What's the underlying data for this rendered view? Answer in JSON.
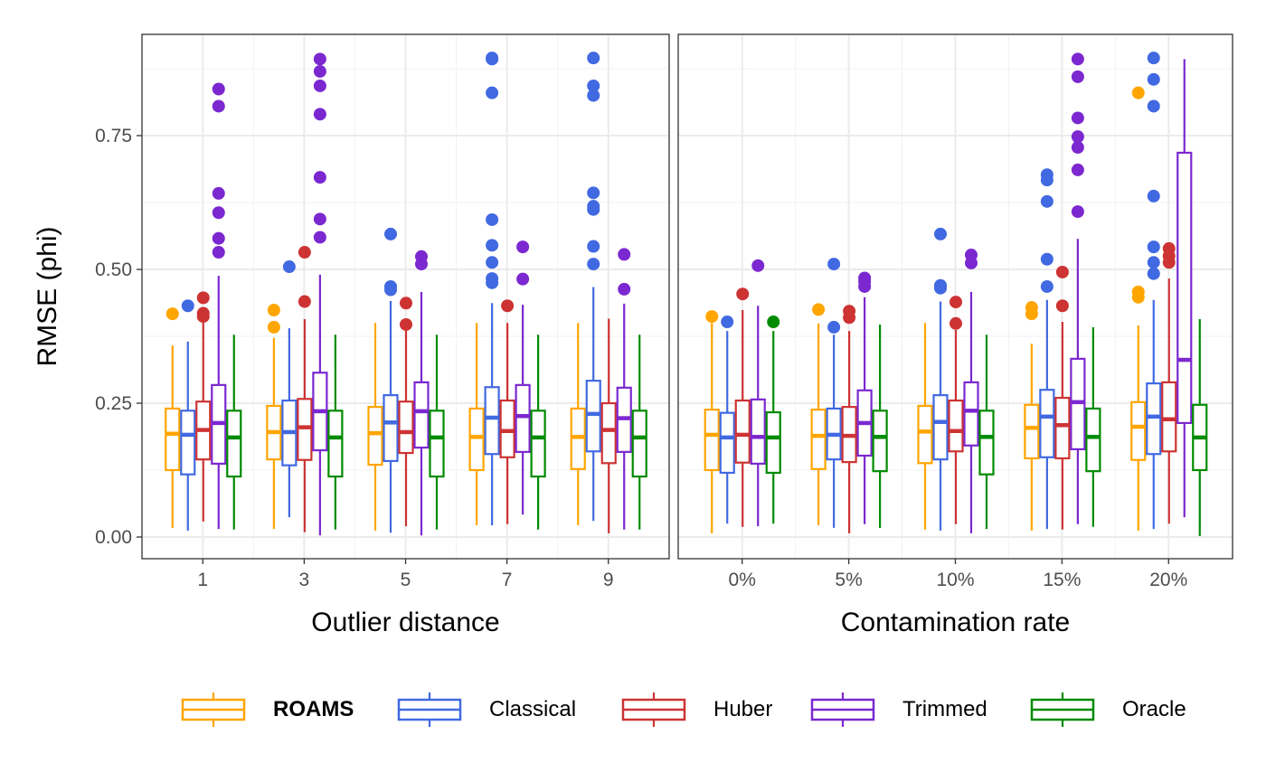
{
  "colors": {
    "ROAMS": "#FFA500",
    "Classical": "#4169E1",
    "Huber": "#CD3333",
    "Trimmed": "#7B28D0",
    "Oracle": "#008B00"
  },
  "legend": {
    "items": [
      {
        "label": "ROAMS",
        "bold": true
      },
      {
        "label": "Classical",
        "bold": false
      },
      {
        "label": "Huber",
        "bold": false
      },
      {
        "label": "Trimmed",
        "bold": false
      },
      {
        "label": "Oracle",
        "bold": false
      }
    ],
    "position": "bottom"
  },
  "chart_data": [
    {
      "type": "box",
      "xlabel": "Outlier distance",
      "ylabel": "RMSE (phi)",
      "ylim": [
        -0.04,
        0.94
      ],
      "yticks": [
        "0.00",
        "0.25",
        "0.50",
        "0.75"
      ],
      "grid": true,
      "categories": [
        "1",
        "3",
        "5",
        "7",
        "9"
      ],
      "series": [
        {
          "name": "ROAMS",
          "boxes": [
            {
              "min": 0.017,
              "q1": 0.125,
              "median": 0.193,
              "q3": 0.24,
              "max": 0.358,
              "outliers": [
                0.417
              ]
            },
            {
              "min": 0.015,
              "q1": 0.145,
              "median": 0.196,
              "q3": 0.245,
              "max": 0.372,
              "outliers": [
                0.424,
                0.392
              ]
            },
            {
              "min": 0.012,
              "q1": 0.135,
              "median": 0.194,
              "q3": 0.243,
              "max": 0.4,
              "outliers": []
            },
            {
              "min": 0.022,
              "q1": 0.125,
              "median": 0.187,
              "q3": 0.24,
              "max": 0.4,
              "outliers": []
            },
            {
              "min": 0.022,
              "q1": 0.127,
              "median": 0.187,
              "q3": 0.24,
              "max": 0.4,
              "outliers": []
            }
          ]
        },
        {
          "name": "Classical",
          "boxes": [
            {
              "min": 0.012,
              "q1": 0.117,
              "median": 0.191,
              "q3": 0.236,
              "max": 0.365,
              "outliers": [
                0.432
              ]
            },
            {
              "min": 0.037,
              "q1": 0.134,
              "median": 0.196,
              "q3": 0.255,
              "max": 0.39,
              "outliers": [
                0.505
              ]
            },
            {
              "min": 0.008,
              "q1": 0.142,
              "median": 0.214,
              "q3": 0.265,
              "max": 0.441,
              "outliers": [
                0.566,
                0.468,
                0.462
              ]
            },
            {
              "min": 0.022,
              "q1": 0.155,
              "median": 0.223,
              "q3": 0.28,
              "max": 0.437,
              "outliers": [
                0.895,
                0.893,
                0.83,
                0.593,
                0.545,
                0.513,
                0.483,
                0.475
              ]
            },
            {
              "min": 0.03,
              "q1": 0.16,
              "median": 0.23,
              "q3": 0.292,
              "max": 0.467,
              "outliers": [
                0.895,
                0.843,
                0.825,
                0.643,
                0.618,
                0.612,
                0.543,
                0.51
              ]
            }
          ]
        },
        {
          "name": "Huber",
          "boxes": [
            {
              "min": 0.029,
              "q1": 0.145,
              "median": 0.2,
              "q3": 0.253,
              "max": 0.41,
              "outliers": [
                0.447,
                0.418,
                0.412
              ]
            },
            {
              "min": 0.009,
              "q1": 0.144,
              "median": 0.205,
              "q3": 0.258,
              "max": 0.407,
              "outliers": [
                0.532,
                0.44
              ]
            },
            {
              "min": 0.02,
              "q1": 0.157,
              "median": 0.196,
              "q3": 0.253,
              "max": 0.4,
              "outliers": [
                0.437,
                0.397
              ]
            },
            {
              "min": 0.024,
              "q1": 0.149,
              "median": 0.198,
              "q3": 0.255,
              "max": 0.4,
              "outliers": [
                0.432
              ]
            },
            {
              "min": 0.007,
              "q1": 0.138,
              "median": 0.2,
              "q3": 0.25,
              "max": 0.408,
              "outliers": []
            }
          ]
        },
        {
          "name": "Trimmed",
          "boxes": [
            {
              "min": 0.015,
              "q1": 0.137,
              "median": 0.213,
              "q3": 0.284,
              "max": 0.488,
              "outliers": [
                0.837,
                0.805,
                0.642,
                0.606,
                0.558,
                0.532
              ]
            },
            {
              "min": 0.003,
              "q1": 0.162,
              "median": 0.235,
              "q3": 0.307,
              "max": 0.49,
              "outliers": [
                0.893,
                0.87,
                0.843,
                0.79,
                0.672,
                0.594,
                0.56
              ]
            },
            {
              "min": 0.003,
              "q1": 0.167,
              "median": 0.235,
              "q3": 0.289,
              "max": 0.458,
              "outliers": [
                0.524,
                0.51
              ]
            },
            {
              "min": 0.042,
              "q1": 0.159,
              "median": 0.226,
              "q3": 0.284,
              "max": 0.434,
              "outliers": [
                0.542,
                0.482
              ]
            },
            {
              "min": 0.014,
              "q1": 0.159,
              "median": 0.222,
              "q3": 0.279,
              "max": 0.436,
              "outliers": [
                0.528,
                0.463
              ]
            }
          ]
        },
        {
          "name": "Oracle",
          "boxes": [
            {
              "min": 0.014,
              "q1": 0.113,
              "median": 0.186,
              "q3": 0.236,
              "max": 0.378,
              "outliers": []
            },
            {
              "min": 0.014,
              "q1": 0.113,
              "median": 0.186,
              "q3": 0.236,
              "max": 0.378,
              "outliers": []
            },
            {
              "min": 0.014,
              "q1": 0.113,
              "median": 0.186,
              "q3": 0.236,
              "max": 0.378,
              "outliers": []
            },
            {
              "min": 0.014,
              "q1": 0.113,
              "median": 0.186,
              "q3": 0.236,
              "max": 0.378,
              "outliers": []
            },
            {
              "min": 0.014,
              "q1": 0.113,
              "median": 0.186,
              "q3": 0.236,
              "max": 0.378,
              "outliers": []
            }
          ]
        }
      ]
    },
    {
      "type": "box",
      "xlabel": "Contamination rate",
      "ylabel": "",
      "ylim": [
        -0.04,
        0.94
      ],
      "yticks": [],
      "grid": true,
      "categories": [
        "0%",
        "5%",
        "10%",
        "15%",
        "20%"
      ],
      "series": [
        {
          "name": "ROAMS",
          "boxes": [
            {
              "min": 0.007,
              "q1": 0.125,
              "median": 0.191,
              "q3": 0.238,
              "max": 0.4,
              "outliers": [
                0.412
              ]
            },
            {
              "min": 0.022,
              "q1": 0.127,
              "median": 0.189,
              "q3": 0.238,
              "max": 0.399,
              "outliers": [
                0.425
              ]
            },
            {
              "min": 0.014,
              "q1": 0.138,
              "median": 0.197,
              "q3": 0.245,
              "max": 0.4,
              "outliers": []
            },
            {
              "min": 0.012,
              "q1": 0.147,
              "median": 0.204,
              "q3": 0.247,
              "max": 0.361,
              "outliers": [
                0.429,
                0.417
              ]
            },
            {
              "min": 0.012,
              "q1": 0.144,
              "median": 0.206,
              "q3": 0.252,
              "max": 0.395,
              "outliers": [
                0.83,
                0.458,
                0.448
              ]
            }
          ]
        },
        {
          "name": "Classical",
          "boxes": [
            {
              "min": 0.025,
              "q1": 0.12,
              "median": 0.186,
              "q3": 0.232,
              "max": 0.385,
              "outliers": [
                0.402
              ]
            },
            {
              "min": 0.017,
              "q1": 0.145,
              "median": 0.191,
              "q3": 0.24,
              "max": 0.378,
              "outliers": [
                0.51,
                0.392
              ]
            },
            {
              "min": 0.012,
              "q1": 0.145,
              "median": 0.215,
              "q3": 0.265,
              "max": 0.44,
              "outliers": [
                0.566,
                0.47,
                0.465
              ]
            },
            {
              "min": 0.015,
              "q1": 0.149,
              "median": 0.225,
              "q3": 0.275,
              "max": 0.443,
              "outliers": [
                0.677,
                0.667,
                0.627,
                0.519,
                0.468
              ]
            },
            {
              "min": 0.015,
              "q1": 0.155,
              "median": 0.225,
              "q3": 0.287,
              "max": 0.443,
              "outliers": [
                0.895,
                0.855,
                0.805,
                0.637,
                0.542,
                0.513,
                0.492
              ]
            }
          ]
        },
        {
          "name": "Huber",
          "boxes": [
            {
              "min": 0.019,
              "q1": 0.139,
              "median": 0.191,
              "q3": 0.255,
              "max": 0.424,
              "outliers": [
                0.454
              ]
            },
            {
              "min": 0.007,
              "q1": 0.14,
              "median": 0.189,
              "q3": 0.243,
              "max": 0.385,
              "outliers": [
                0.422,
                0.41
              ]
            },
            {
              "min": 0.024,
              "q1": 0.16,
              "median": 0.198,
              "q3": 0.255,
              "max": 0.387,
              "outliers": [
                0.439,
                0.399
              ]
            },
            {
              "min": 0.014,
              "q1": 0.147,
              "median": 0.209,
              "q3": 0.26,
              "max": 0.402,
              "outliers": [
                0.495,
                0.432
              ]
            },
            {
              "min": 0.025,
              "q1": 0.16,
              "median": 0.22,
              "q3": 0.289,
              "max": 0.483,
              "outliers": [
                0.539,
                0.525,
                0.513
              ]
            }
          ]
        },
        {
          "name": "Trimmed",
          "boxes": [
            {
              "min": 0.02,
              "q1": 0.137,
              "median": 0.187,
              "q3": 0.257,
              "max": 0.432,
              "outliers": [
                0.507
              ]
            },
            {
              "min": 0.024,
              "q1": 0.152,
              "median": 0.213,
              "q3": 0.274,
              "max": 0.448,
              "outliers": [
                0.484,
                0.477,
                0.468
              ]
            },
            {
              "min": 0.007,
              "q1": 0.171,
              "median": 0.236,
              "q3": 0.289,
              "max": 0.458,
              "outliers": [
                0.527,
                0.512
              ]
            },
            {
              "min": 0.024,
              "q1": 0.164,
              "median": 0.252,
              "q3": 0.333,
              "max": 0.557,
              "outliers": [
                0.893,
                0.86,
                0.783,
                0.748,
                0.728,
                0.686,
                0.608
              ]
            },
            {
              "min": 0.037,
              "q1": 0.213,
              "median": 0.331,
              "q3": 0.718,
              "max": 0.893,
              "outliers": []
            }
          ]
        },
        {
          "name": "Oracle",
          "boxes": [
            {
              "min": 0.025,
              "q1": 0.12,
              "median": 0.186,
              "q3": 0.233,
              "max": 0.385,
              "outliers": [
                0.402
              ]
            },
            {
              "min": 0.017,
              "q1": 0.123,
              "median": 0.187,
              "q3": 0.236,
              "max": 0.397,
              "outliers": []
            },
            {
              "min": 0.015,
              "q1": 0.117,
              "median": 0.187,
              "q3": 0.236,
              "max": 0.378,
              "outliers": []
            },
            {
              "min": 0.019,
              "q1": 0.123,
              "median": 0.187,
              "q3": 0.24,
              "max": 0.392,
              "outliers": []
            },
            {
              "min": 0.002,
              "q1": 0.125,
              "median": 0.186,
              "q3": 0.247,
              "max": 0.407,
              "outliers": []
            }
          ]
        }
      ]
    }
  ]
}
